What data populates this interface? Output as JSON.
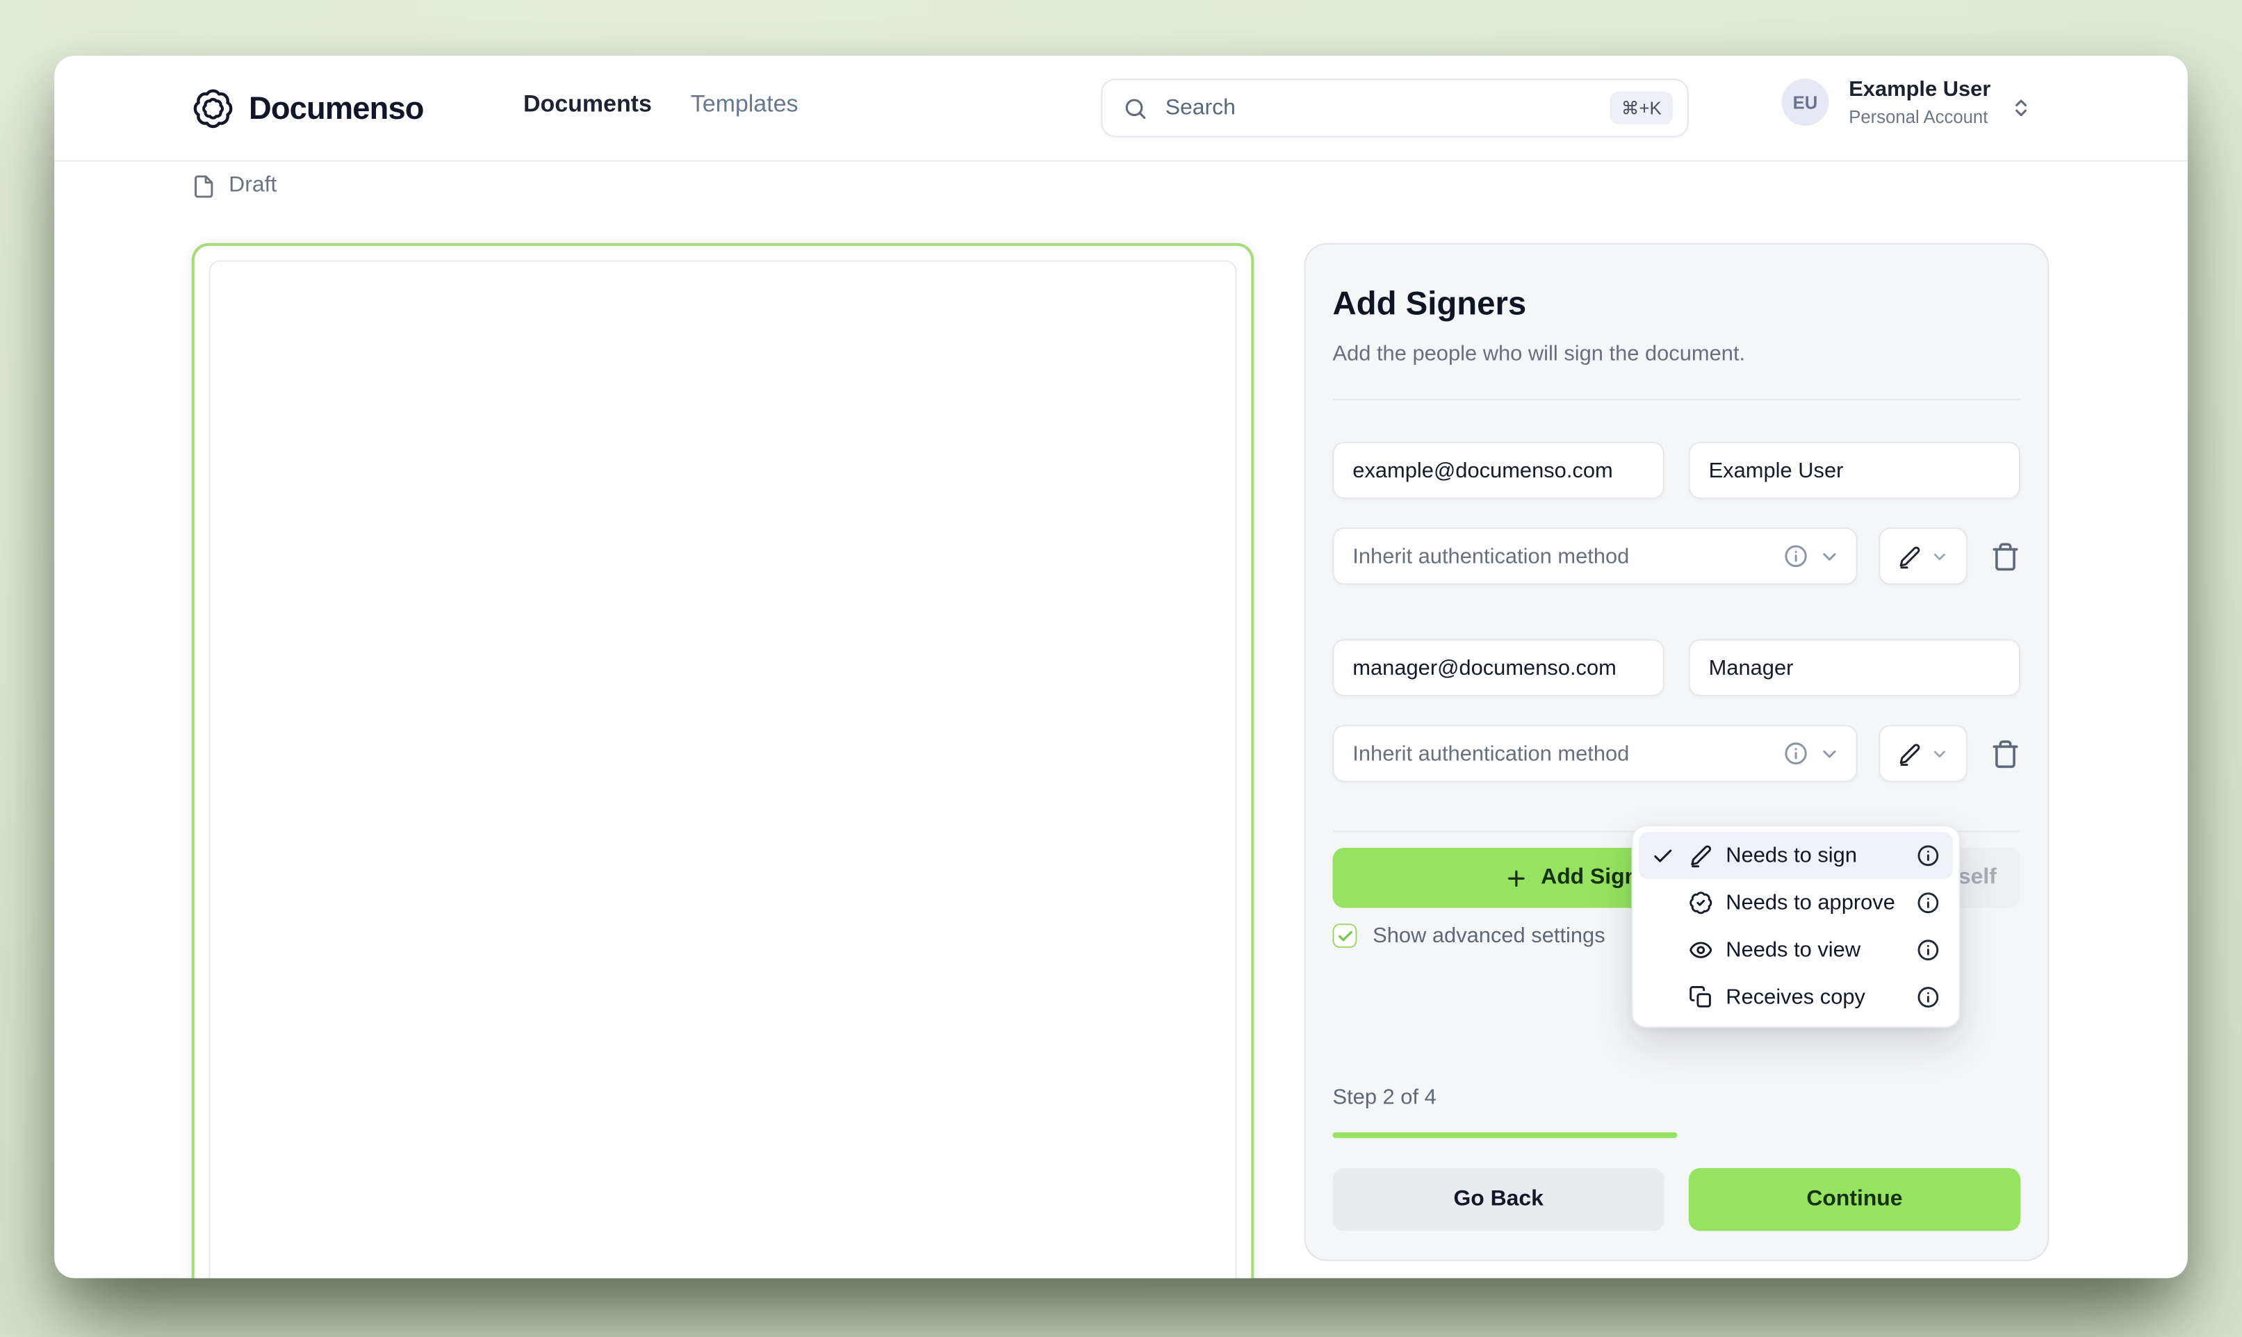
{
  "header": {
    "brand": "Documenso",
    "nav": [
      {
        "label": "Documents"
      },
      {
        "label": "Templates"
      }
    ],
    "search": {
      "placeholder": "Search",
      "shortcut": "⌘+K"
    },
    "user": {
      "initials": "EU",
      "name": "Example User",
      "account": "Personal Account"
    }
  },
  "document": {
    "status": "Draft"
  },
  "panel": {
    "title": "Add Signers",
    "subtitle": "Add the people who will sign the document.",
    "signers": [
      {
        "email": "example@documenso.com",
        "name": "Example User",
        "auth_placeholder": "Inherit authentication method"
      },
      {
        "email": "manager@documenso.com",
        "name": "Manager",
        "auth_placeholder": "Inherit authentication method"
      }
    ],
    "add_signer_label": "Add Signer",
    "add_myself_label": "Add Myself",
    "advanced_label": "Show advanced settings",
    "step_label": "Step 2 of 4",
    "progress_percent": 50,
    "go_back_label": "Go Back",
    "continue_label": "Continue"
  },
  "role_menu": {
    "items": [
      {
        "label": "Needs to sign",
        "icon": "pen-icon",
        "selected": true
      },
      {
        "label": "Needs to approve",
        "icon": "badge-check-icon",
        "selected": false
      },
      {
        "label": "Needs to view",
        "icon": "eye-icon",
        "selected": false
      },
      {
        "label": "Receives copy",
        "icon": "copy-icon",
        "selected": false
      }
    ]
  },
  "colors": {
    "brand_green": "#96e361",
    "doc_border_green": "#a6dc7c",
    "checkbox_green": "#9ed96f",
    "menu_highlight": "#eef2f7",
    "page_background": "#dcead4"
  }
}
